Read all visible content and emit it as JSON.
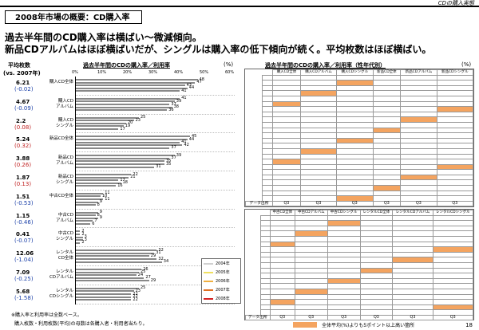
{
  "header": {
    "report_label": "CDの購入実態"
  },
  "title": "2008年市場の概要：CD購入率",
  "headlines": [
    "過去半年間のCD購入率は横ばい～微減傾向。",
    "新品CDアルバムはほぼ横ばいだが、シングルは購入率の低下傾向が続く。平均枚数はほぼ横ばい。"
  ],
  "left_chart": {
    "avg_label": "平均枚数",
    "avg_sub": "(vs. 2007年)",
    "title": "過去半年間のCDの購入率／利用率",
    "pct": "(%)",
    "axis_ticks": [
      "0%",
      "10%",
      "20%",
      "30%",
      "40%",
      "50%",
      "60%"
    ],
    "legend": [
      "2004年",
      "2005年",
      "2006年",
      "2007年",
      "2008年"
    ],
    "series_colors": [
      "#d0d0d0",
      "#f0e060",
      "#f0b040",
      "#e07020",
      "#d42020"
    ],
    "categories": [
      {
        "label": "購入CD全体",
        "avg": "6.21",
        "diff": "(-0.02)",
        "values": [
          48,
          47,
          43,
          44,
          41
        ]
      },
      {
        "label": "購入CD\nアルバム",
        "avg": "4.67",
        "diff": "(-0.09)",
        "values": [
          41,
          39,
          37,
          38,
          36
        ]
      },
      {
        "label": "購入CD\nシングル",
        "avg": "2.2",
        "diff": "(0.08)",
        "values": [
          25,
          23,
          20,
          19,
          17
        ]
      },
      {
        "label": "新品CD全体",
        "avg": "5.24",
        "diff": "(0.32)",
        "values": [
          45,
          44,
          41,
          42,
          37
        ]
      },
      {
        "label": "新品CD\nアルバム",
        "avg": "3.88",
        "diff": "(0.26)",
        "values": [
          39,
          37,
          35,
          35,
          31
        ]
      },
      {
        "label": "新品CD\nシングル",
        "avg": "1.87",
        "diff": "(0.13)",
        "values": [
          22,
          21,
          17,
          18,
          16
        ]
      },
      {
        "label": "中古CD全体",
        "avg": "1.51",
        "diff": "(-0.53)",
        "values": [
          11,
          10,
          11,
          9,
          8
        ]
      },
      {
        "label": "中古CD\nアルバム",
        "avg": "1.15",
        "diff": "(-0.46)",
        "values": [
          9,
          8,
          9,
          7,
          6
        ]
      },
      {
        "label": "中古CD\nシングル",
        "avg": "0.41",
        "diff": "(-0.07)",
        "values": [
          2,
          2,
          3,
          3,
          2
        ]
      },
      {
        "label": "レンタル\nCD全体",
        "avg": "12.06",
        "diff": "(-1.04)",
        "values": [
          32,
          31,
          29,
          32,
          34
        ]
      },
      {
        "label": "レンタル\nCDアルバム",
        "avg": "7.09",
        "diff": "(-0.25)",
        "values": [
          26,
          25,
          24,
          27,
          29
        ]
      },
      {
        "label": "レンタル\nCDシングル",
        "avg": "5.68",
        "diff": "(-1.58)",
        "values": [
          25,
          23,
          22,
          22,
          22
        ]
      }
    ],
    "footnotes": [
      "※購入率と利用率は全数ベース。",
      "購入枚数・利用枚数(平均)の母数は各購入者・利用者当たり。"
    ]
  },
  "right_table": {
    "title": "過去半年間のCDの購入率／利用率（性年代別）",
    "pct": "(%)",
    "top_headers": [
      "購入CD全体",
      "購入CDアルバム",
      "購入CDシングル",
      "新品CD全体",
      "新品CDアルバム",
      "新品CDシングル"
    ],
    "bottom_headers": [
      "中古CD全体",
      "中古CDアルバム",
      "中古CDシングル",
      "レンタルCD全体",
      "レンタルCDアルバム",
      "レンタルCDシングル"
    ],
    "data_source": "データ出所",
    "quarter": "Q3",
    "highlight_legend": "全体平均(%)よりも5ポイント以上高い箇所",
    "page_number": "18"
  }
}
